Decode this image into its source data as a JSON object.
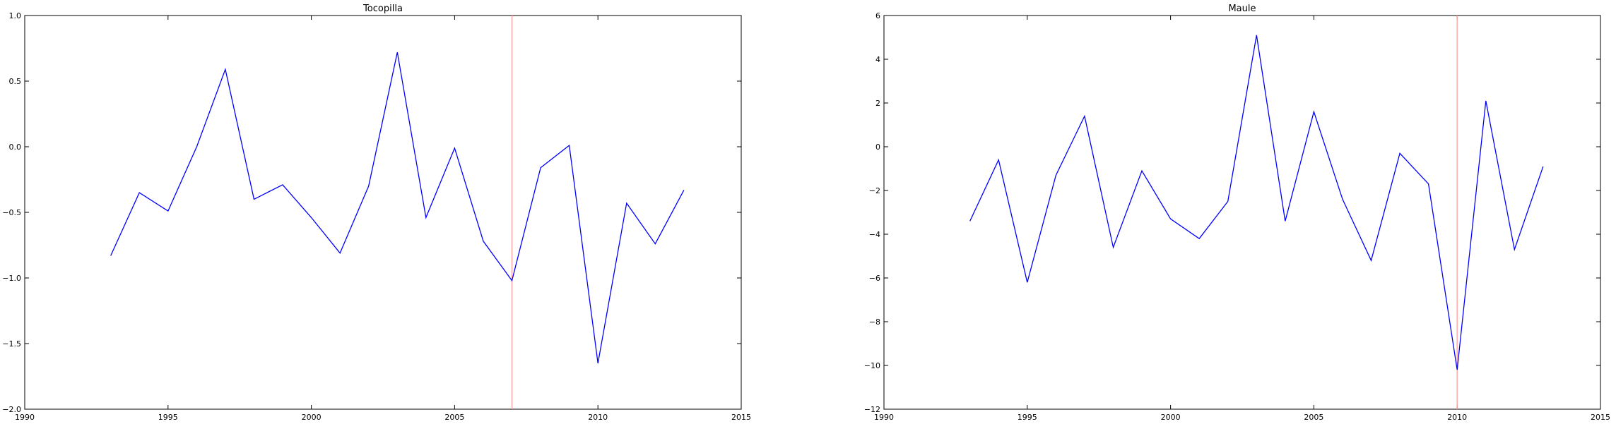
{
  "chart_data": [
    {
      "type": "line",
      "title": "Tocopilla",
      "xlabel": "",
      "ylabel": "",
      "xlim": [
        1990,
        2015
      ],
      "ylim": [
        -2.0,
        1.0
      ],
      "xticks": [
        1990,
        1995,
        2000,
        2005,
        2010,
        2015
      ],
      "xtick_labels": [
        "1990",
        "1995",
        "2000",
        "2005",
        "2010",
        "2015"
      ],
      "yticks": [
        -2.0,
        -1.5,
        -1.0,
        -0.5,
        0.0,
        0.5,
        1.0
      ],
      "ytick_labels": [
        "−2.0",
        "−1.5",
        "−1.0",
        "−0.5",
        "0.0",
        "0.5",
        "1.0"
      ],
      "grid": false,
      "series": [
        {
          "color": "#0000ff",
          "x": [
            1993,
            1994,
            1995,
            1996,
            1997,
            1998,
            1999,
            2000,
            2001,
            2002,
            2003,
            2004,
            2005,
            2006,
            2007,
            2008,
            2009,
            2010,
            2011,
            2012,
            2013
          ],
          "y": [
            -0.83,
            -0.35,
            -0.49,
            0.0,
            0.59,
            -0.4,
            -0.29,
            -0.54,
            -0.81,
            -0.3,
            0.72,
            -0.54,
            -0.01,
            -0.72,
            -1.02,
            -0.16,
            0.01,
            -1.65,
            -0.43,
            -0.74,
            -0.33
          ]
        }
      ],
      "vertical_line": {
        "x": 2007,
        "color": "#ff9e9e"
      }
    },
    {
      "type": "line",
      "title": "Maule",
      "xlabel": "",
      "ylabel": "",
      "xlim": [
        1990,
        2015
      ],
      "ylim": [
        -12,
        6
      ],
      "xticks": [
        1990,
        1995,
        2000,
        2005,
        2010,
        2015
      ],
      "xtick_labels": [
        "1990",
        "1995",
        "2000",
        "2005",
        "2010",
        "2015"
      ],
      "yticks": [
        -12,
        -10,
        -8,
        -6,
        -4,
        -2,
        0,
        2,
        4,
        6
      ],
      "ytick_labels": [
        "−12",
        "−10",
        "−8",
        "−6",
        "−4",
        "−2",
        "0",
        "2",
        "4",
        "6"
      ],
      "grid": false,
      "series": [
        {
          "color": "#0000ff",
          "x": [
            1993,
            1994,
            1995,
            1996,
            1997,
            1998,
            1999,
            2000,
            2001,
            2002,
            2003,
            2004,
            2005,
            2006,
            2007,
            2008,
            2009,
            2010,
            2011,
            2012,
            2013
          ],
          "y": [
            -3.4,
            -0.6,
            -6.2,
            -1.3,
            1.4,
            -4.6,
            -1.1,
            -3.3,
            -4.2,
            -2.5,
            5.1,
            -3.4,
            1.6,
            -2.4,
            -5.2,
            -0.3,
            -1.7,
            -10.2,
            2.1,
            -4.7,
            -0.9
          ]
        }
      ],
      "vertical_line": {
        "x": 2010,
        "color": "#ff9e9e"
      }
    }
  ]
}
